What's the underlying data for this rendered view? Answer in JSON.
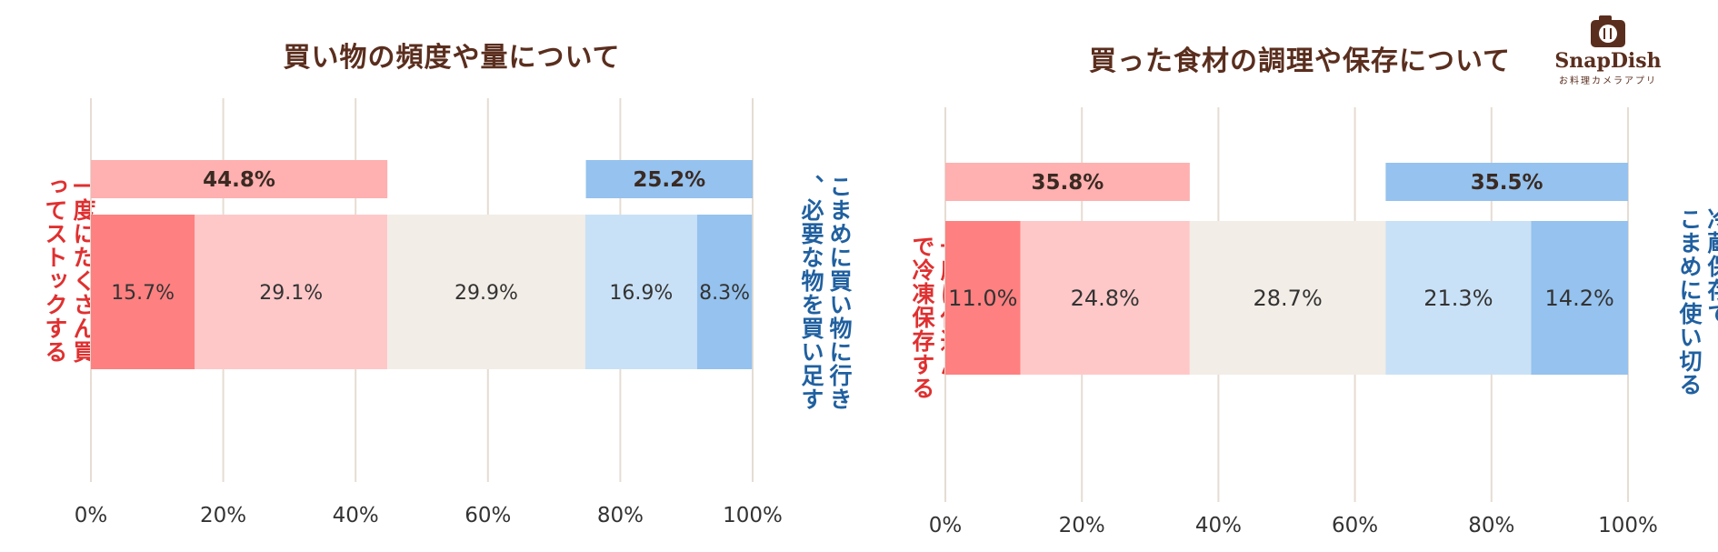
{
  "logo": {
    "name": "SnapDish",
    "tagline": "お料理カメラアプリ",
    "icon": "camera-icon"
  },
  "colors": {
    "strong_red": "#ff8080",
    "light_red": "#ffc8c8",
    "neutral": "#f2ede6",
    "light_blue": "#c9e1f6",
    "strong_blue": "#95c2ee",
    "total_red": "#ffb0b0",
    "total_blue": "#95c2ee",
    "red_text": "#e03030",
    "blue_text": "#2060a0",
    "title_text": "#5a2e1e",
    "grid": "#e6dcd2"
  },
  "chart_data": [
    {
      "type": "bar",
      "orientation": "horizontal-stacked",
      "title": "買い物の頻度や量について",
      "left_label": "一度にたくさん買ってストックする",
      "right_label": "こまめに買い物に行き、必要な物を買い足す",
      "segments": [
        15.7,
        29.1,
        29.9,
        16.9,
        8.3
      ],
      "segment_labels": [
        "15.7%",
        "29.1%",
        "29.9%",
        "16.9%",
        "8.3%"
      ],
      "totals": [
        {
          "label": "44.8%",
          "value": 44.8,
          "side": "left"
        },
        {
          "label": "25.2%",
          "value": 25.2,
          "side": "right"
        }
      ],
      "xlim": [
        0,
        100
      ],
      "ticks": [
        "0%",
        "20%",
        "40%",
        "60%",
        "80%",
        "100%"
      ],
      "grid": true
    },
    {
      "type": "bar",
      "orientation": "horizontal-stacked",
      "title": "買った食材の調理や保存について",
      "left_label": "一度に仕込んで冷凍保存する",
      "right_label": "冷蔵保存でこまめに使い切る",
      "segments": [
        11.0,
        24.8,
        28.7,
        21.3,
        14.2
      ],
      "segment_labels": [
        "11.0%",
        "24.8%",
        "28.7%",
        "21.3%",
        "14.2%"
      ],
      "totals": [
        {
          "label": "35.8%",
          "value": 35.8,
          "side": "left"
        },
        {
          "label": "35.5%",
          "value": 35.5,
          "side": "right"
        }
      ],
      "xlim": [
        0,
        100
      ],
      "ticks": [
        "0%",
        "20%",
        "40%",
        "60%",
        "80%",
        "100%"
      ],
      "grid": true
    }
  ]
}
